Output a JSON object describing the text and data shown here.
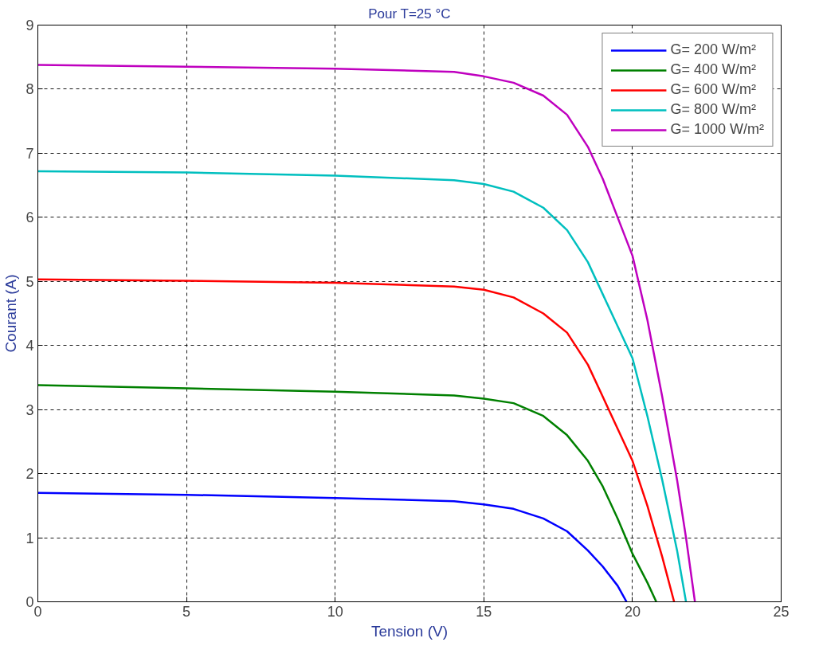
{
  "chart_data": {
    "type": "line",
    "title": "Pour T=25 °C",
    "xlabel": "Tension (V)",
    "ylabel": "Courant (A)",
    "xlim": [
      0,
      25
    ],
    "ylim": [
      0,
      9
    ],
    "xticks": [
      0,
      5,
      10,
      15,
      20,
      25
    ],
    "yticks": [
      0,
      1,
      2,
      3,
      4,
      5,
      6,
      7,
      8,
      9
    ],
    "grid": true,
    "legend": "top right",
    "line_style": "solid",
    "marker": "none",
    "series": [
      {
        "name": "G= 200 W/m²",
        "color": "#0000ff",
        "x": [
          0,
          5,
          10,
          14,
          15,
          16,
          17,
          17.8,
          18.5,
          19,
          19.5,
          19.8
        ],
        "values": [
          1.7,
          1.67,
          1.62,
          1.57,
          1.52,
          1.45,
          1.3,
          1.1,
          0.8,
          0.55,
          0.25,
          0
        ]
      },
      {
        "name": "G= 400 W/m²",
        "color": "#008000",
        "x": [
          0,
          5,
          10,
          14,
          15,
          16,
          17,
          17.8,
          18.5,
          19,
          19.5,
          20,
          20.5,
          20.8
        ],
        "values": [
          3.38,
          3.33,
          3.28,
          3.22,
          3.17,
          3.1,
          2.9,
          2.6,
          2.2,
          1.8,
          1.3,
          0.75,
          0.3,
          0
        ]
      },
      {
        "name": "G= 600 W/m²",
        "color": "#ff0000",
        "x": [
          0,
          5,
          10,
          14,
          15,
          16,
          17,
          17.8,
          18.5,
          19,
          19.5,
          20,
          20.5,
          21,
          21.4
        ],
        "values": [
          5.03,
          5.01,
          4.98,
          4.92,
          4.87,
          4.75,
          4.5,
          4.2,
          3.7,
          3.2,
          2.7,
          2.2,
          1.5,
          0.7,
          0
        ]
      },
      {
        "name": "G= 800 W/m²",
        "color": "#00bfbf",
        "x": [
          0,
          5,
          10,
          14,
          15,
          16,
          17,
          17.8,
          18.5,
          19,
          19.5,
          20,
          20.5,
          21,
          21.5,
          21.8
        ],
        "values": [
          6.72,
          6.7,
          6.65,
          6.58,
          6.52,
          6.4,
          6.15,
          5.8,
          5.3,
          4.8,
          4.3,
          3.8,
          2.9,
          1.9,
          0.8,
          0
        ]
      },
      {
        "name": "G= 1000 W/m²",
        "color": "#bf00bf",
        "x": [
          0,
          5,
          10,
          14,
          15,
          16,
          17,
          17.8,
          18.5,
          19,
          19.5,
          20,
          20.5,
          21,
          21.5,
          21.8,
          22.1
        ],
        "values": [
          8.38,
          8.35,
          8.32,
          8.27,
          8.2,
          8.1,
          7.9,
          7.6,
          7.1,
          6.6,
          6.0,
          5.4,
          4.4,
          3.2,
          1.9,
          1.0,
          0
        ]
      }
    ]
  }
}
